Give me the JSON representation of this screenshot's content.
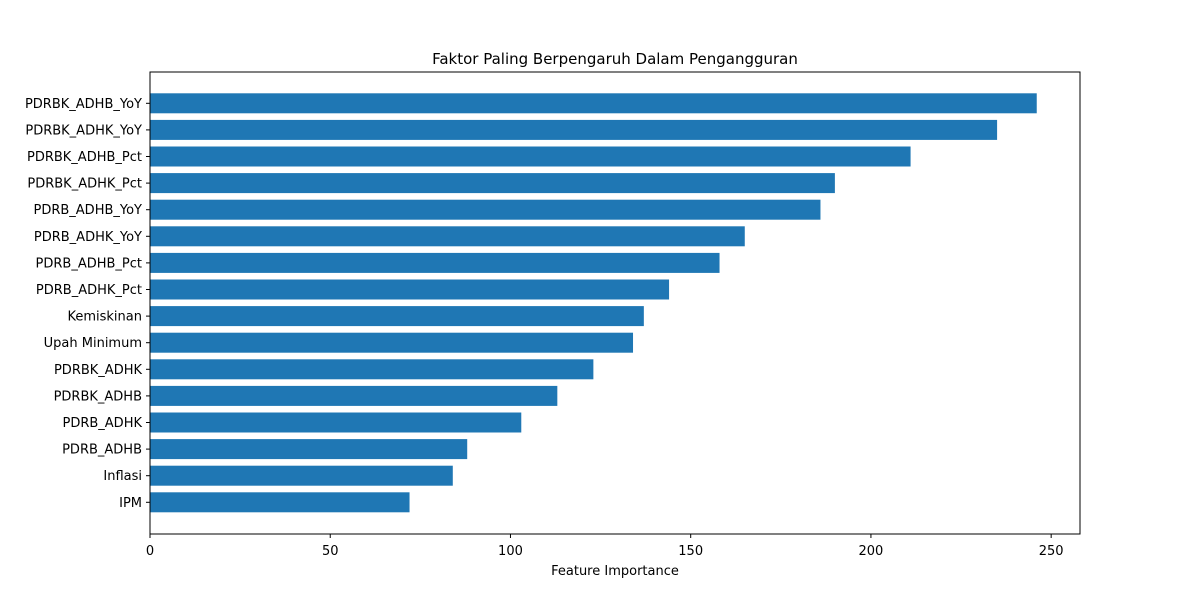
{
  "chart_data": {
    "type": "bar",
    "orientation": "horizontal",
    "title": "Faktor Paling Berpengaruh Dalam Pengangguran",
    "xlabel": "Feature Importance",
    "ylabel": "",
    "categories": [
      "PDRBK_ADHB_YoY",
      "PDRBK_ADHK_YoY",
      "PDRBK_ADHB_Pct",
      "PDRBK_ADHK_Pct",
      "PDRB_ADHB_YoY",
      "PDRB_ADHK_YoY",
      "PDRB_ADHB_Pct",
      "PDRB_ADHK_Pct",
      "Kemiskinan",
      "Upah Minimum",
      "PDRBK_ADHK",
      "PDRBK_ADHB",
      "PDRB_ADHK",
      "PDRB_ADHB",
      "Inflasi",
      "IPM"
    ],
    "values": [
      246,
      235,
      211,
      190,
      186,
      165,
      158,
      144,
      137,
      134,
      123,
      113,
      103,
      88,
      84,
      72
    ],
    "xlim": [
      0,
      258
    ],
    "xticks": [
      0,
      50,
      100,
      150,
      200,
      250
    ],
    "grid": false,
    "bar_color": "#1f77b4"
  }
}
